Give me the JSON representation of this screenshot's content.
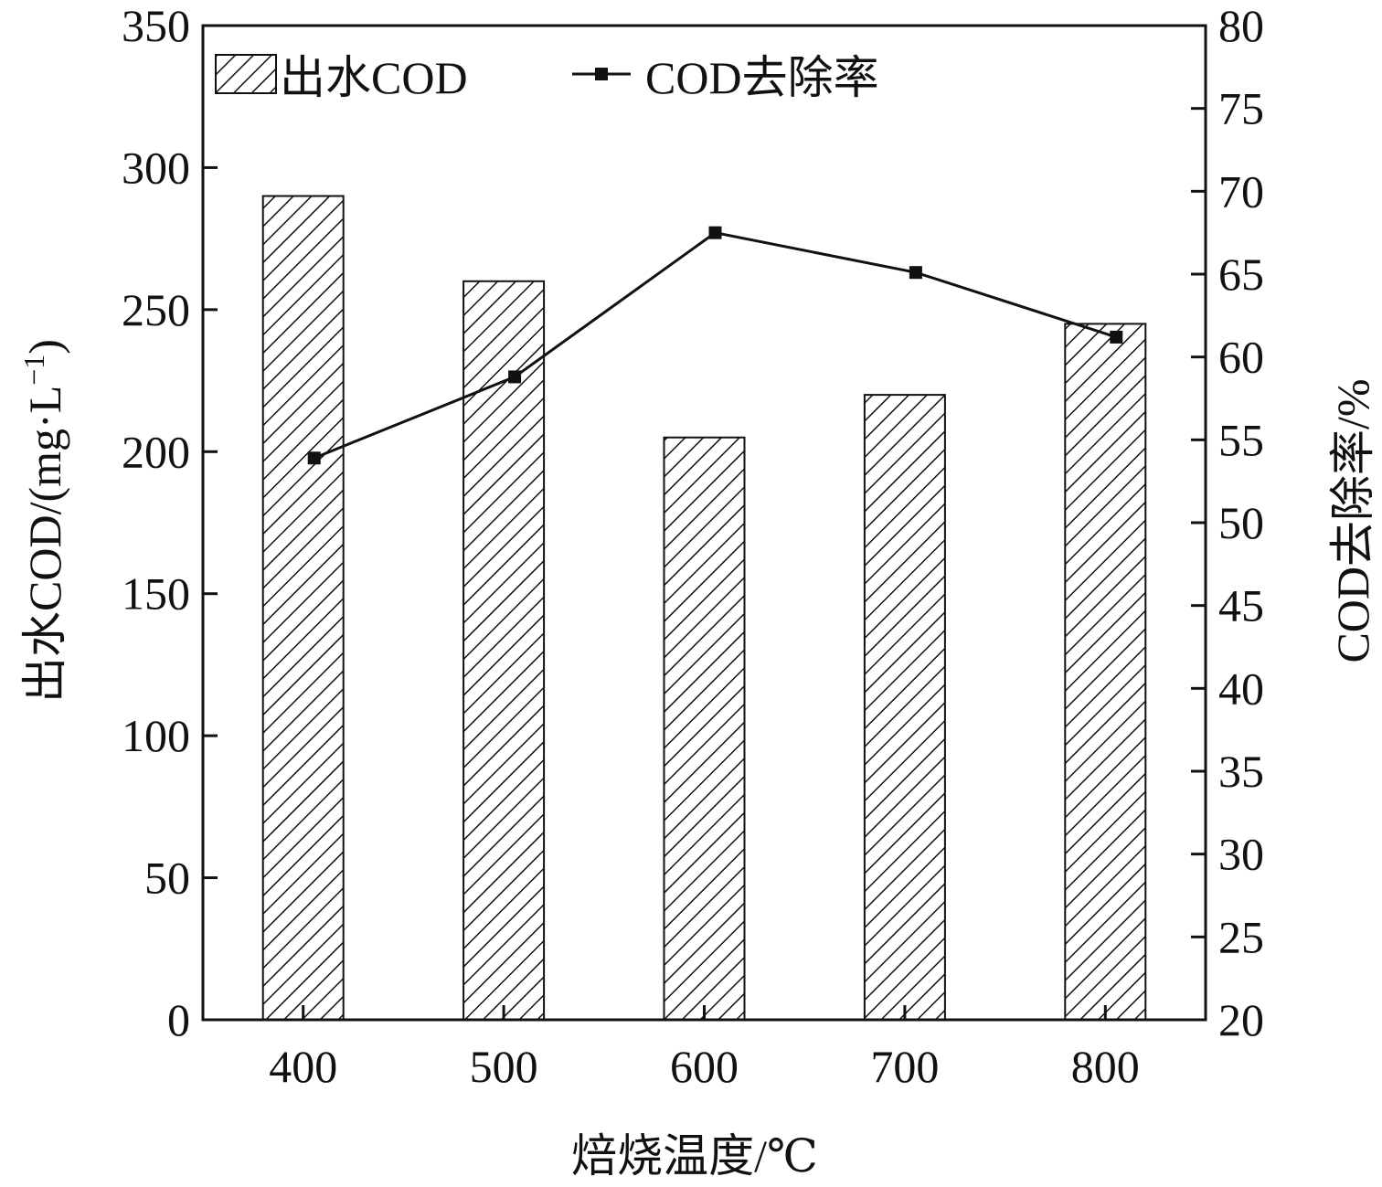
{
  "chart_data": {
    "type": "bar+line",
    "categories": [
      "400",
      "500",
      "600",
      "700",
      "800"
    ],
    "xlabel": "焙烧温度/℃",
    "series": [
      {
        "name": "出水COD",
        "type": "bar",
        "axis": "left",
        "values": [
          290,
          260,
          205,
          220,
          245
        ]
      },
      {
        "name": "COD去除率",
        "type": "line",
        "axis": "right",
        "values": [
          53.9,
          58.8,
          67.5,
          65.1,
          61.2
        ]
      }
    ],
    "y_left": {
      "label": "出水COD/(mg·L",
      "label_sup": "−1",
      "label_close": ")",
      "lim": [
        0,
        350
      ],
      "ticks": [
        "0",
        "50",
        "100",
        "150",
        "200",
        "250",
        "300",
        "350"
      ]
    },
    "y_right": {
      "label": "COD去除率/%",
      "lim": [
        20,
        80
      ],
      "ticks": [
        "20",
        "25",
        "30",
        "35",
        "40",
        "45",
        "50",
        "55",
        "60",
        "65",
        "70",
        "75",
        "80"
      ]
    },
    "legend_position": "top",
    "grid": false,
    "colors": {
      "bar_fill_pattern": "diagonal-hatch",
      "line": "#111111",
      "marker": "#111111"
    }
  }
}
